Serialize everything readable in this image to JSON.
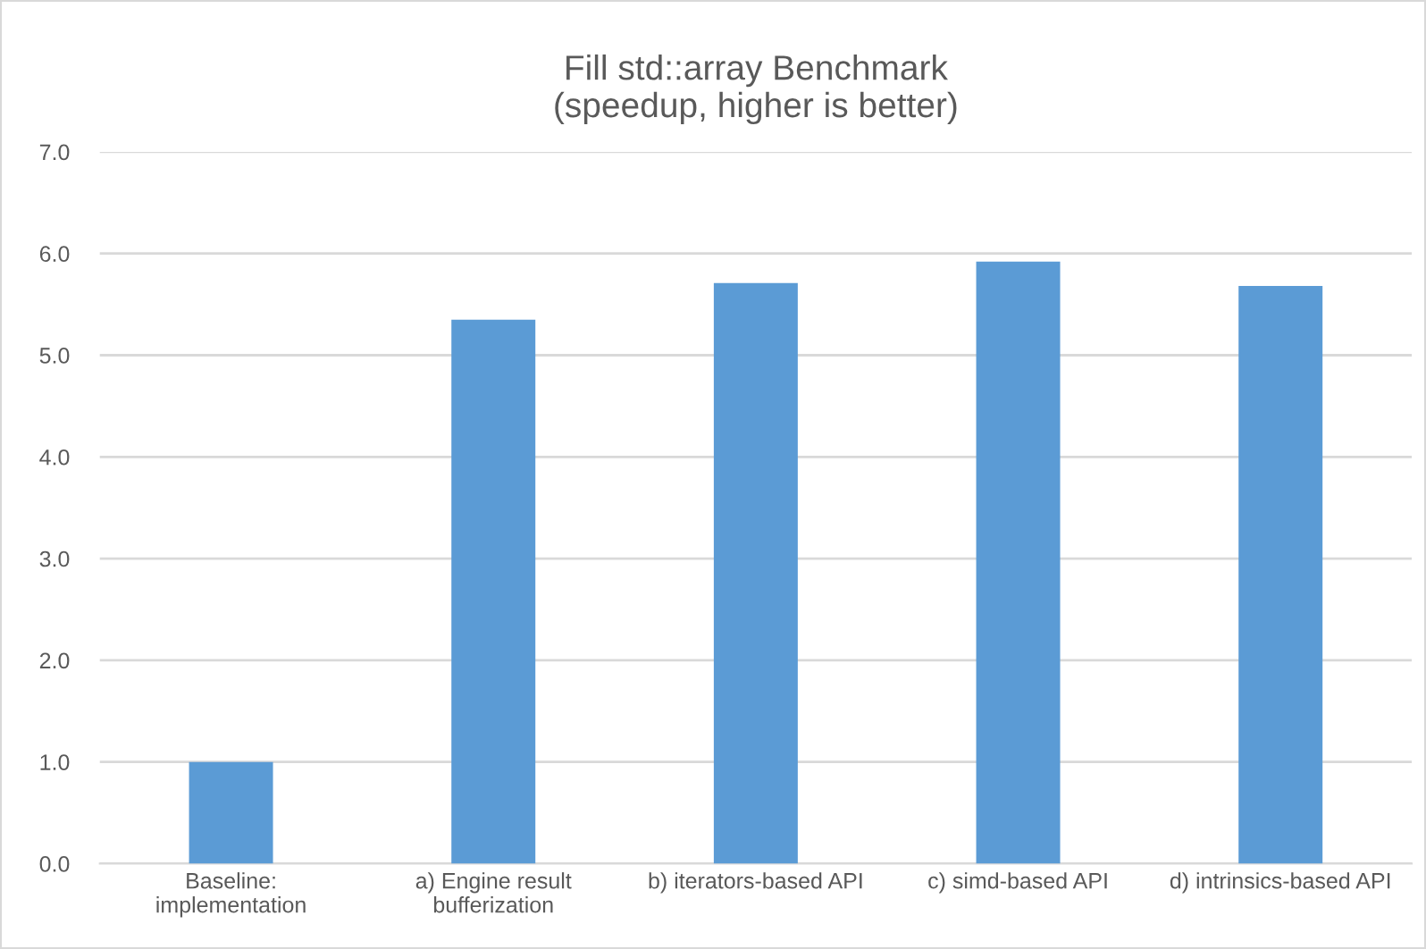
{
  "chart_data": {
    "type": "bar",
    "title": "Fill std::array Benchmark\n(speedup, higher is better)",
    "categories": [
      "Baseline:\nimplementation",
      "a) Engine result\nbufferization",
      "b) iterators-based API",
      "c) simd-based API",
      "d) intrinsics-based API"
    ],
    "values": [
      1.0,
      5.35,
      5.71,
      5.92,
      5.68
    ],
    "color": "#5b9bd5",
    "ylim": [
      0,
      7
    ],
    "yticks": [
      {
        "value": 0,
        "label": "0.0"
      },
      {
        "value": 1,
        "label": "1.0"
      },
      {
        "value": 2,
        "label": "2.0"
      },
      {
        "value": 3,
        "label": "3.0"
      },
      {
        "value": 4,
        "label": "4.0"
      },
      {
        "value": 5,
        "label": "5.0"
      },
      {
        "value": 6,
        "label": "6.0"
      },
      {
        "value": 7,
        "label": "7.0"
      }
    ],
    "grid": "y"
  }
}
